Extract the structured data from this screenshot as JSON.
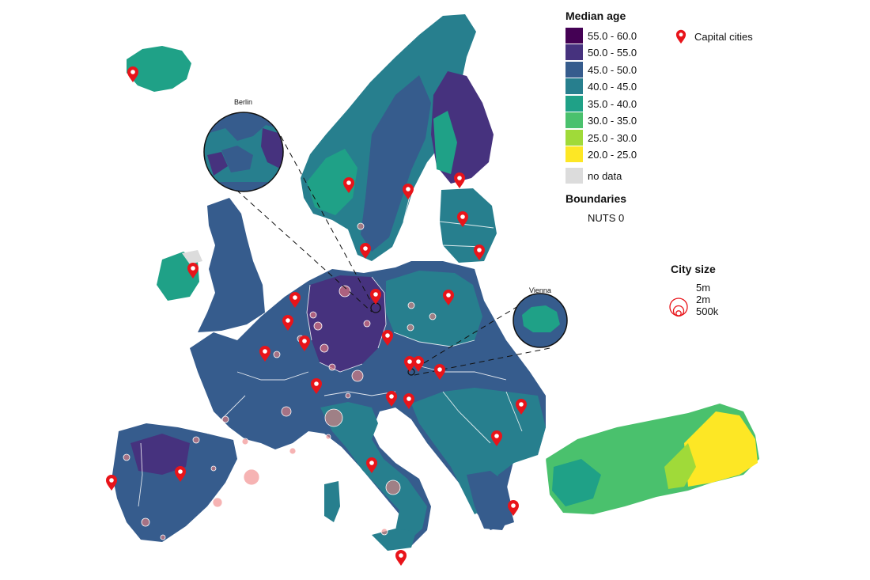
{
  "legend": {
    "title": "Median age",
    "items": [
      {
        "label": "55.0 - 60.0",
        "color": "#440154"
      },
      {
        "label": "50.0 - 55.0",
        "color": "#46327e"
      },
      {
        "label": "45.0 - 50.0",
        "color": "#365c8d"
      },
      {
        "label": "40.0 - 45.0",
        "color": "#277f8e"
      },
      {
        "label": "35.0 - 40.0",
        "color": "#1fa187"
      },
      {
        "label": "30.0 - 35.0",
        "color": "#4ac16d"
      },
      {
        "label": "25.0 - 30.0",
        "color": "#a0da39"
      },
      {
        "label": "20.0 - 25.0",
        "color": "#fde725"
      }
    ],
    "no_data": {
      "label": "no data",
      "color": "#dcdcdc"
    }
  },
  "capitals_legend": {
    "label": "Capital cities",
    "icon": "map-pin-icon",
    "color": "#e8141a"
  },
  "boundaries_legend": {
    "title": "Boundaries",
    "item": "NUTS 0"
  },
  "city_size_legend": {
    "title": "City size",
    "labels": [
      "5m",
      "2m",
      "500k"
    ]
  },
  "insets": [
    {
      "name": "Berlin"
    },
    {
      "name": "Vienna"
    }
  ]
}
